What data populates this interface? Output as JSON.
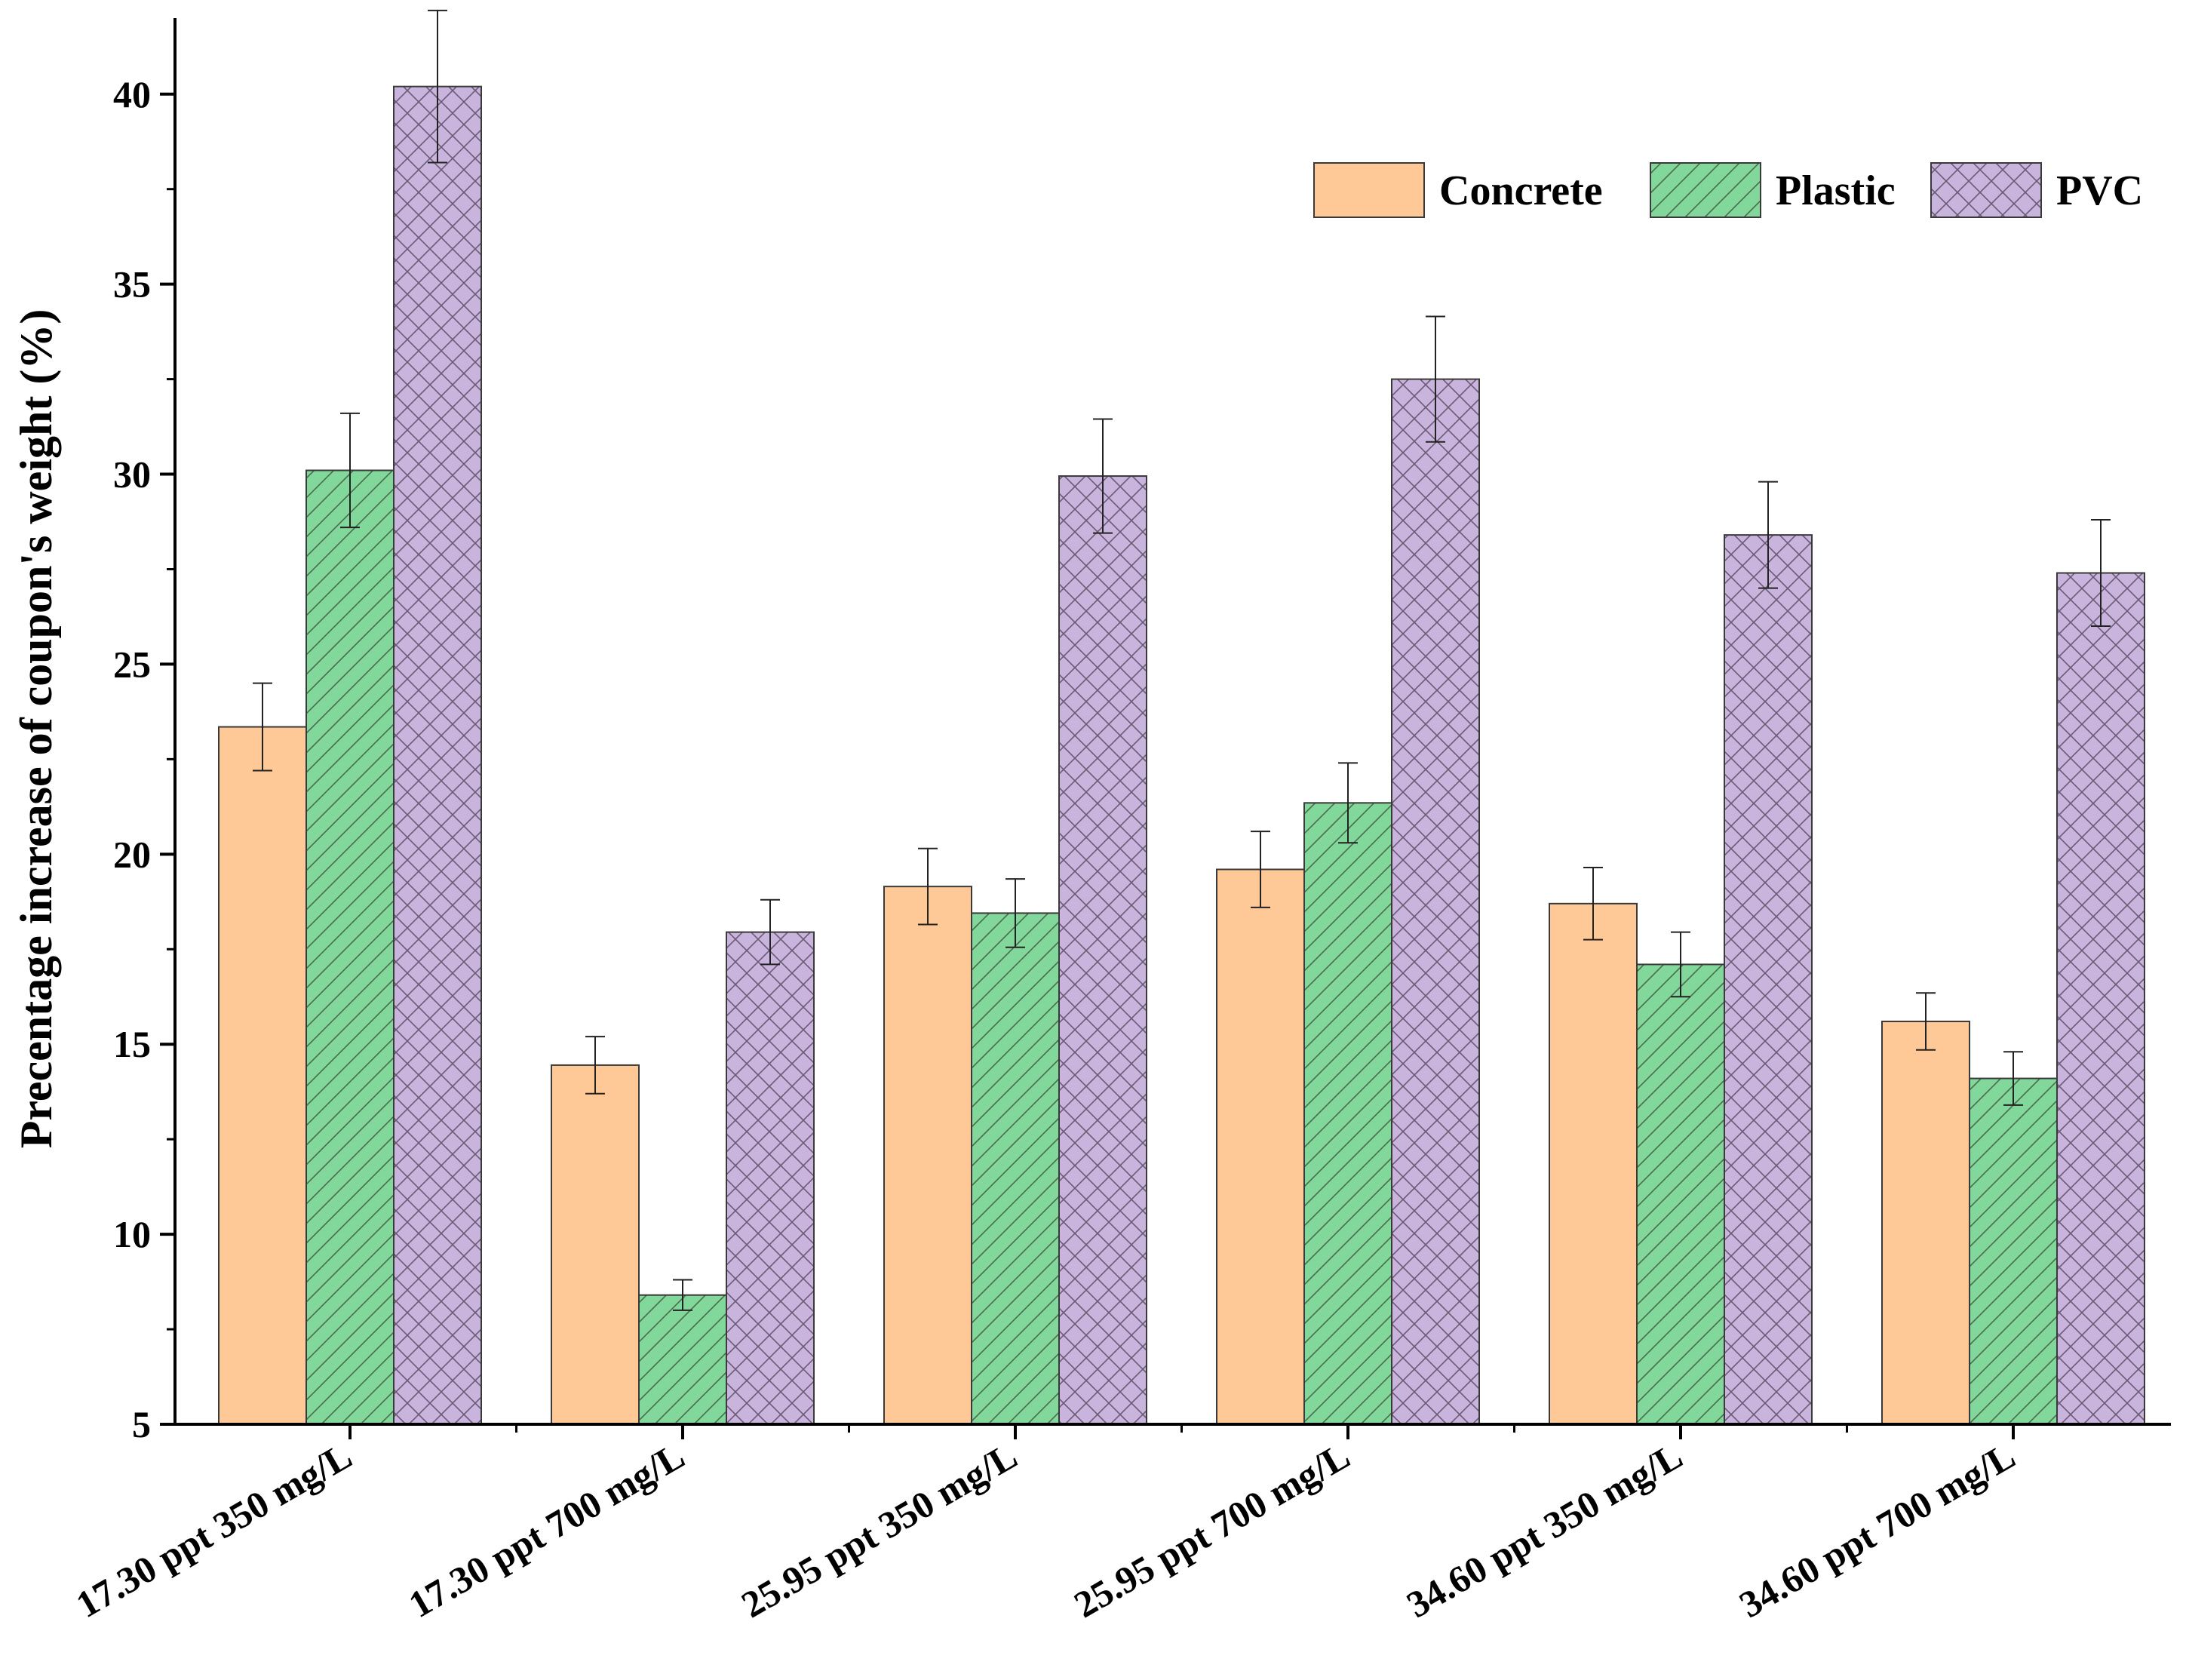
{
  "chart_data": {
    "type": "bar",
    "ylabel": "Precentage increase of coupon's weight (%)",
    "xlabel": "",
    "ylim": [
      5,
      42
    ],
    "yticks": [
      5,
      10,
      15,
      20,
      25,
      30,
      35,
      40
    ],
    "grid": false,
    "legend_position": "top-right",
    "categories": [
      "17.30 ppt 350 mg/L",
      "17.30 ppt 700 mg/L",
      "25.95 ppt 350 mg/L",
      "25.95 ppt 700 mg/L",
      "34.60 ppt 350 mg/L",
      "34.60 ppt 700 mg/L"
    ],
    "series": [
      {
        "name": "Concrete",
        "color": "#FFC896",
        "pattern": "none",
        "values": [
          23.35,
          14.45,
          19.15,
          19.6,
          18.7,
          15.6
        ],
        "errors": [
          1.15,
          0.75,
          1.0,
          1.0,
          0.95,
          0.75
        ]
      },
      {
        "name": "Plastic",
        "color": "#82D79B",
        "pattern": "diagonal-hatch",
        "values": [
          30.1,
          8.4,
          18.45,
          21.35,
          17.1,
          14.1
        ],
        "errors": [
          1.5,
          0.4,
          0.9,
          1.05,
          0.85,
          0.7
        ]
      },
      {
        "name": "PVC",
        "color": "#C8B4DC",
        "pattern": "cross-hatch",
        "values": [
          40.2,
          17.95,
          29.95,
          32.5,
          28.4,
          27.4
        ],
        "errors": [
          2.0,
          0.85,
          1.5,
          1.65,
          1.4,
          1.4
        ]
      }
    ]
  }
}
